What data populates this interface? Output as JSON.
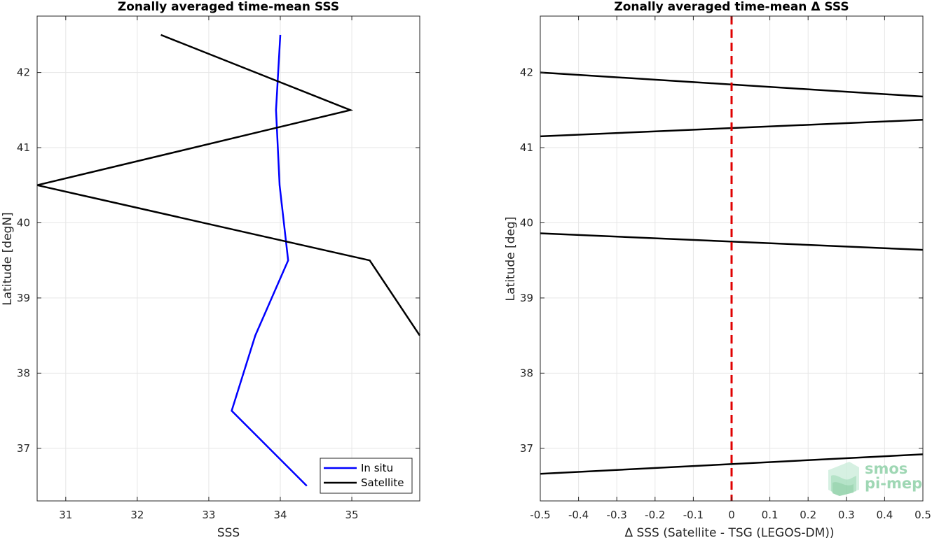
{
  "chart_data": [
    {
      "type": "line",
      "title": "Zonally averaged time-mean SSS",
      "xlabel": "SSS",
      "ylabel": "Latitude [degN]",
      "xlim": [
        30.6,
        35.95
      ],
      "ylim": [
        36.3,
        42.75
      ],
      "xticks": [
        31,
        32,
        33,
        34,
        35
      ],
      "yticks": [
        37,
        38,
        39,
        40,
        41,
        42
      ],
      "grid": true,
      "legend_position": "bottom-right",
      "series": [
        {
          "name": "In situ",
          "color": "#0000ff",
          "points": [
            [
              34.37,
              36.5
            ],
            [
              33.32,
              37.5
            ],
            [
              33.65,
              38.5
            ],
            [
              34.11,
              39.5
            ],
            [
              33.99,
              40.5
            ],
            [
              33.94,
              41.5
            ],
            [
              34.0,
              42.5
            ]
          ]
        },
        {
          "name": "Satellite",
          "color": "#000000",
          "points": [
            [
              35.95,
              38.5
            ],
            [
              35.25,
              39.5
            ],
            [
              30.6,
              40.5
            ],
            [
              34.98,
              41.5
            ],
            [
              32.33,
              42.5
            ]
          ]
        }
      ]
    },
    {
      "type": "line",
      "title": "Zonally averaged time-mean Δ SSS",
      "xlabel": "Δ SSS (Satellite - TSG (LEGOS-DM))",
      "ylabel": "Latitude [deg]",
      "xlim": [
        -0.5,
        0.5
      ],
      "ylim": [
        36.3,
        42.75
      ],
      "xticks": [
        -0.5,
        -0.4,
        -0.3,
        -0.2,
        -0.1,
        0,
        0.1,
        0.2,
        0.3,
        0.4,
        0.5
      ],
      "xtick_labels": [
        "-0.5",
        "-0.4",
        "-0.3",
        "-0.2",
        "-0.1",
        "0",
        "0.1",
        "0.2",
        "0.3",
        "0.4",
        "0.5"
      ],
      "yticks": [
        37,
        38,
        39,
        40,
        41,
        42
      ],
      "grid": true,
      "reference_line": {
        "x": 0,
        "color": "#e00000",
        "style": "dashed"
      },
      "series": [
        {
          "color": "#000000",
          "points": [
            [
              -0.5,
              36.66
            ],
            [
              0.5,
              36.92
            ]
          ]
        },
        {
          "color": "#000000",
          "points": [
            [
              -0.5,
              39.86
            ],
            [
              0.5,
              39.64
            ]
          ]
        },
        {
          "color": "#000000",
          "points": [
            [
              -0.5,
              41.15
            ],
            [
              0.5,
              41.37
            ]
          ]
        },
        {
          "color": "#000000",
          "points": [
            [
              -0.5,
              42.0
            ],
            [
              0.5,
              41.68
            ]
          ]
        }
      ]
    }
  ],
  "logo": {
    "line1": "smos",
    "line2": "pi-mep",
    "color": "#8fd1a8"
  }
}
